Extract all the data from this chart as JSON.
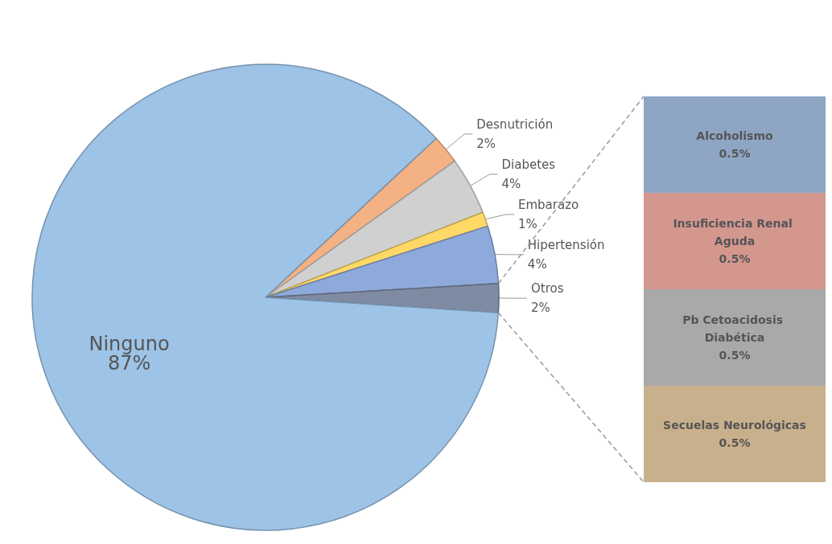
{
  "chart_data": [
    {
      "type": "pie",
      "categories": [
        "Desnutrición",
        "Diabetes",
        "Embarazo",
        "Hipertensión",
        "Otros",
        "Ninguno"
      ],
      "values": [
        2,
        4,
        1,
        4,
        2,
        87
      ],
      "value_labels": [
        "2%",
        "4%",
        "1%",
        "4%",
        "2%",
        "87%"
      ],
      "colors": [
        "#f4b183",
        "#d0d0d0",
        "#ffd966",
        "#8ea9db",
        "#7f8aa3",
        "#9dc3e6"
      ]
    },
    {
      "type": "bar",
      "stacked": true,
      "categories": [
        null
      ],
      "series": [
        {
          "name": "Secuelas Neurológicas",
          "color": "#c9b08c",
          "values": [
            0.5
          ],
          "value_labels": [
            "0.5%"
          ]
        },
        {
          "name": "Pb Cetoacidosis Diabética",
          "color": "#a9a9a9",
          "values": [
            0.5
          ],
          "value_labels": [
            "0.5%"
          ]
        },
        {
          "name": "Insuficiencia Renal Aguda",
          "color": "#d4978e",
          "values": [
            0.5
          ],
          "value_labels": [
            "0.5%"
          ]
        },
        {
          "name": "Alcoholismo",
          "color": "#8fa5c4",
          "values": [
            0.5
          ],
          "value_labels": [
            "0.5%"
          ]
        }
      ]
    }
  ]
}
